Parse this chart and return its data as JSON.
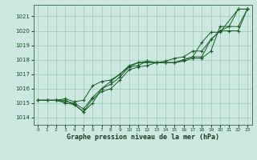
{
  "title": "Graphe pression niveau de la mer (hPa)",
  "background_color": "#cce8e0",
  "grid_color": "#99ccbb",
  "line_color": "#1a5c28",
  "ylim": [
    1013.5,
    1021.8
  ],
  "yticks": [
    1014,
    1015,
    1016,
    1017,
    1018,
    1019,
    1020,
    1021
  ],
  "xlim": [
    -0.5,
    23.5
  ],
  "series": [
    {
      "xs": [
        0,
        1,
        2,
        3,
        4,
        5,
        6,
        7,
        8,
        9,
        10,
        11,
        12,
        13,
        14,
        15,
        16,
        17,
        18,
        19,
        20,
        21,
        22,
        23
      ],
      "ys": [
        1015.2,
        1015.2,
        1015.2,
        1015.0,
        1014.9,
        1014.4,
        1015.3,
        1015.8,
        1016.0,
        1016.6,
        1017.3,
        1017.5,
        1017.6,
        1017.8,
        1017.8,
        1017.8,
        1017.9,
        1018.1,
        1018.1,
        1018.6,
        1020.3,
        1020.3,
        1021.5,
        1021.5
      ]
    },
    {
      "xs": [
        0,
        1,
        2,
        3,
        4,
        5,
        6,
        7,
        8,
        9,
        10,
        11,
        12,
        13,
        14,
        15,
        16,
        17,
        18,
        19,
        20,
        21,
        22,
        23
      ],
      "ys": [
        1015.2,
        1015.2,
        1015.2,
        1015.1,
        1015.0,
        1014.6,
        1015.4,
        1016.0,
        1016.3,
        1016.8,
        1017.5,
        1017.6,
        1017.9,
        1017.8,
        1017.8,
        1017.8,
        1018.0,
        1018.2,
        1018.2,
        1019.4,
        1020.0,
        1020.0,
        1020.0,
        1021.5
      ]
    },
    {
      "xs": [
        0,
        1,
        2,
        3,
        4,
        5,
        6,
        7,
        8,
        9,
        10,
        11,
        12,
        13,
        14,
        15,
        16,
        17,
        18,
        19,
        20,
        22,
        23
      ],
      "ys": [
        1015.2,
        1015.2,
        1015.2,
        1015.2,
        1014.9,
        1014.4,
        1015.0,
        1016.0,
        1016.5,
        1017.0,
        1017.5,
        1017.8,
        1017.9,
        1017.8,
        1017.8,
        1017.8,
        1018.0,
        1018.2,
        1019.2,
        1019.9,
        1019.9,
        1021.5,
        1021.5
      ]
    },
    {
      "xs": [
        2,
        3,
        4,
        5,
        6,
        7,
        8,
        9,
        10,
        11,
        12,
        13,
        14,
        15,
        16,
        17,
        18,
        19,
        20,
        21,
        22,
        23
      ],
      "ys": [
        1015.2,
        1015.3,
        1015.1,
        1015.2,
        1016.2,
        1016.5,
        1016.6,
        1017.0,
        1017.6,
        1017.8,
        1017.8,
        1017.8,
        1017.9,
        1018.1,
        1018.2,
        1018.6,
        1018.6,
        1019.4,
        1020.0,
        1020.3,
        1020.3,
        1021.5
      ]
    }
  ]
}
